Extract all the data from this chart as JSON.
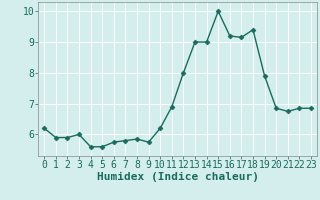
{
  "x": [
    0,
    1,
    2,
    3,
    4,
    5,
    6,
    7,
    8,
    9,
    10,
    11,
    12,
    13,
    14,
    15,
    16,
    17,
    18,
    19,
    20,
    21,
    22,
    23
  ],
  "y": [
    6.2,
    5.9,
    5.9,
    6.0,
    5.6,
    5.6,
    5.75,
    5.8,
    5.85,
    5.75,
    6.2,
    6.9,
    8.0,
    9.0,
    9.0,
    10.0,
    9.2,
    9.15,
    9.4,
    7.9,
    6.85,
    6.75,
    6.85,
    6.85
  ],
  "xlabel": "Humidex (Indice chaleur)",
  "bg_color": "#d4eeed",
  "line_color": "#1a6b5e",
  "marker": "D",
  "marker_size": 2.5,
  "ylim": [
    5.3,
    10.3
  ],
  "yticks": [
    6,
    7,
    8,
    9,
    10
  ],
  "xticks": [
    0,
    1,
    2,
    3,
    4,
    5,
    6,
    7,
    8,
    9,
    10,
    11,
    12,
    13,
    14,
    15,
    16,
    17,
    18,
    19,
    20,
    21,
    22,
    23
  ],
  "grid_color": "#ffffff",
  "tick_label_fontsize": 7,
  "xlabel_fontsize": 8
}
